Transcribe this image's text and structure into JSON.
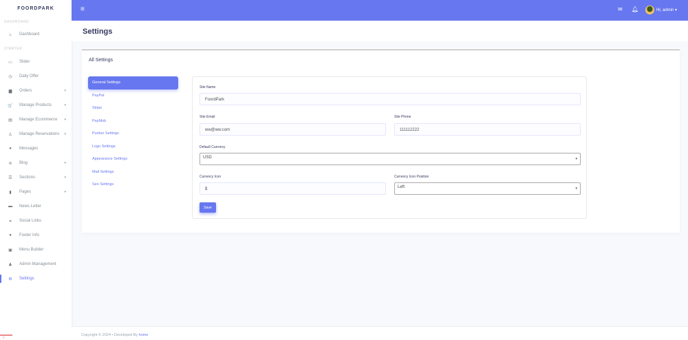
{
  "brand": "FOORDPARK",
  "sidebar": {
    "header1": "DASHBOARD",
    "header2": "STARTER",
    "items": [
      {
        "label": "Dashboard",
        "icon": "fire-icon",
        "glyph": "♨",
        "caret": false
      },
      {
        "label": "Slider",
        "icon": "images-icon",
        "glyph": "▭",
        "caret": false
      },
      {
        "label": "Daily Offer",
        "icon": "clock-icon",
        "glyph": "◷",
        "caret": false
      },
      {
        "label": "Orders",
        "icon": "box-icon",
        "glyph": "▆",
        "caret": true
      },
      {
        "label": "Manage Products",
        "icon": "cart-icon",
        "glyph": "🛒",
        "caret": true
      },
      {
        "label": "Manage Ecommerce",
        "icon": "store-icon",
        "glyph": "▤",
        "caret": true
      },
      {
        "label": "Manage Reservations",
        "icon": "users-icon",
        "glyph": "♙",
        "caret": true
      },
      {
        "label": "Messages",
        "icon": "comment-icon",
        "glyph": "●",
        "caret": false
      },
      {
        "label": "Blog",
        "icon": "rss-icon",
        "glyph": "≋",
        "caret": true
      },
      {
        "label": "Sections",
        "icon": "list-icon",
        "glyph": "☰",
        "caret": true
      },
      {
        "label": "Pages",
        "icon": "file-icon",
        "glyph": "▮",
        "caret": true
      },
      {
        "label": "News Letter",
        "icon": "envelope-icon",
        "glyph": "▬",
        "caret": false
      },
      {
        "label": "Social Links",
        "icon": "link-icon",
        "glyph": "⚭",
        "caret": false
      },
      {
        "label": "Footer Info",
        "icon": "info-icon",
        "glyph": "●",
        "caret": false
      },
      {
        "label": "Menu Builder",
        "icon": "bars-icon",
        "glyph": "▣",
        "caret": false
      },
      {
        "label": "Admin Management",
        "icon": "user-cog-icon",
        "glyph": "♟",
        "caret": false
      },
      {
        "label": "Settings",
        "icon": "cogs-icon",
        "glyph": "⚙",
        "caret": false,
        "active": true
      }
    ]
  },
  "topbar": {
    "user": "Hi, admin",
    "caret": "▾"
  },
  "page_title": "Settings",
  "card_title": "All Settings",
  "settings_nav": [
    "General Settings",
    "PayPal",
    "Stripe",
    "PayMob",
    "Pusher Settings",
    "Logo Settings",
    "Appearance Settings",
    "Mail Settings",
    "Seo Settings"
  ],
  "form": {
    "site_name": {
      "label": "Site Name",
      "value": "FoordPark"
    },
    "site_email": {
      "label": "Site Email",
      "value": "ww@ww.com"
    },
    "site_phone": {
      "label": "Site Phone",
      "value": "111112222"
    },
    "default_currency": {
      "label": "Default Currency",
      "value": "USD"
    },
    "currency_icon": {
      "label": "Currency Icon",
      "value": "$"
    },
    "currency_icon_position": {
      "label": "Currency Icon Position",
      "value": "Left"
    },
    "save": "Save"
  },
  "footer": {
    "text": "Copyright © 2024 • Developed By ",
    "link": "home"
  },
  "colors": {
    "primary": "#6777ef"
  }
}
